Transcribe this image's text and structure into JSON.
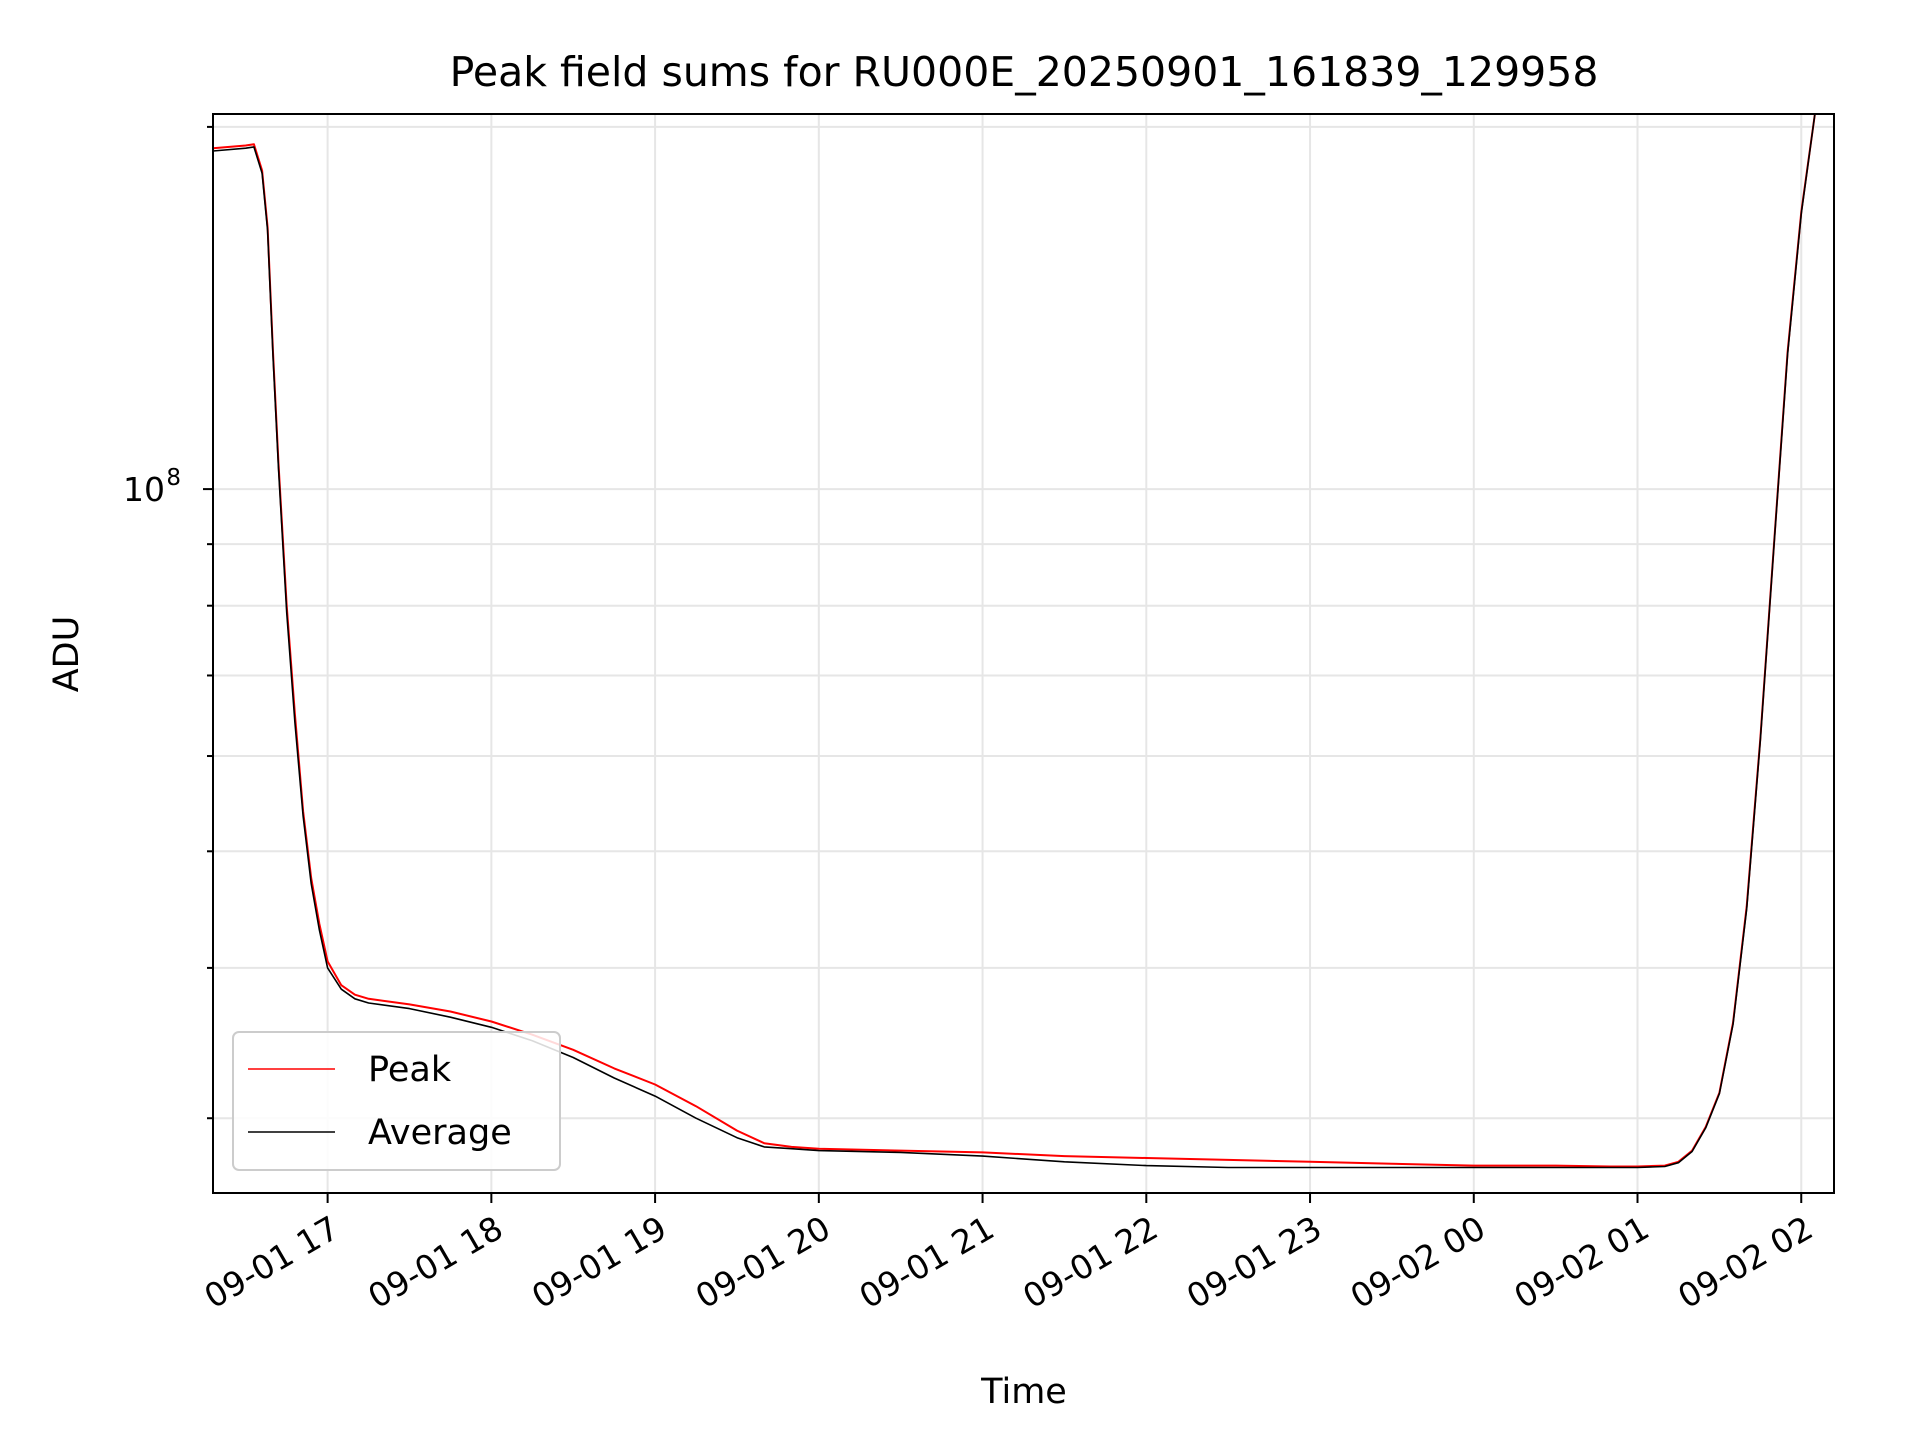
{
  "chart_data": {
    "type": "line",
    "title": "Peak field sums for RU000E_20250901_161839_129958",
    "xlabel": "Time",
    "ylabel": "ADU",
    "y_scale": "log",
    "grid": true,
    "legend_position": "lower-left",
    "x_tick_labels": [
      "09-01 17",
      "09-01 18",
      "09-01 19",
      "09-01 20",
      "09-01 21",
      "09-01 22",
      "09-01 23",
      "09-02 00",
      "09-02 01",
      "09-02 02"
    ],
    "y_tick_labels": [
      {
        "base": "10",
        "exponent": "8"
      }
    ],
    "xlim": [
      "2025-09-01 16:18",
      "2025-09-02 02:12"
    ],
    "ylim": [
      26000000,
      205000000
    ],
    "series": [
      {
        "name": "Peak",
        "color": "#ff0000",
        "x": [
          "2025-09-01 16:18",
          "2025-09-01 16:30",
          "2025-09-01 16:33",
          "2025-09-01 16:36",
          "2025-09-01 16:38",
          "2025-09-01 16:40",
          "2025-09-01 16:42",
          "2025-09-01 16:45",
          "2025-09-01 16:48",
          "2025-09-01 16:51",
          "2025-09-01 16:54",
          "2025-09-01 16:57",
          "2025-09-01 17:00",
          "2025-09-01 17:05",
          "2025-09-01 17:10",
          "2025-09-01 17:15",
          "2025-09-01 17:30",
          "2025-09-01 17:45",
          "2025-09-01 18:00",
          "2025-09-01 18:15",
          "2025-09-01 18:30",
          "2025-09-01 18:45",
          "2025-09-01 19:00",
          "2025-09-01 19:15",
          "2025-09-01 19:30",
          "2025-09-01 19:40",
          "2025-09-01 19:50",
          "2025-09-01 20:00",
          "2025-09-01 20:30",
          "2025-09-01 21:00",
          "2025-09-01 21:30",
          "2025-09-01 22:00",
          "2025-09-01 22:30",
          "2025-09-01 23:00",
          "2025-09-01 23:30",
          "2025-09-02 00:00",
          "2025-09-02 00:30",
          "2025-09-02 00:50",
          "2025-09-02 01:00",
          "2025-09-02 01:10",
          "2025-09-02 01:15",
          "2025-09-02 01:20",
          "2025-09-02 01:25",
          "2025-09-02 01:30",
          "2025-09-02 01:35",
          "2025-09-02 01:40",
          "2025-09-02 01:45",
          "2025-09-02 01:50",
          "2025-09-02 01:55",
          "2025-09-02 02:00",
          "2025-09-02 02:05"
        ],
        "y": [
          192000000,
          193000000,
          193500000,
          184000000,
          165000000,
          130000000,
          105000000,
          80000000,
          65000000,
          54000000,
          47500000,
          43500000,
          40500000,
          38700000,
          38000000,
          37700000,
          37300000,
          36800000,
          36100000,
          35200000,
          34200000,
          33000000,
          32000000,
          30700000,
          29300000,
          28600000,
          28400000,
          28300000,
          28200000,
          28100000,
          27900000,
          27800000,
          27700000,
          27600000,
          27500000,
          27400000,
          27400000,
          27350000,
          27350000,
          27400000,
          27600000,
          28200000,
          29500000,
          31500000,
          36000000,
          45000000,
          62000000,
          90000000,
          130000000,
          170000000,
          205000000
        ]
      },
      {
        "name": "Average",
        "color": "#000000",
        "x": [
          "2025-09-01 16:18",
          "2025-09-01 16:30",
          "2025-09-01 16:33",
          "2025-09-01 16:36",
          "2025-09-01 16:38",
          "2025-09-01 16:40",
          "2025-09-01 16:42",
          "2025-09-01 16:45",
          "2025-09-01 16:48",
          "2025-09-01 16:51",
          "2025-09-01 16:54",
          "2025-09-01 16:57",
          "2025-09-01 17:00",
          "2025-09-01 17:05",
          "2025-09-01 17:10",
          "2025-09-01 17:15",
          "2025-09-01 17:30",
          "2025-09-01 17:45",
          "2025-09-01 18:00",
          "2025-09-01 18:15",
          "2025-09-01 18:30",
          "2025-09-01 18:45",
          "2025-09-01 19:00",
          "2025-09-01 19:15",
          "2025-09-01 19:30",
          "2025-09-01 19:40",
          "2025-09-01 19:50",
          "2025-09-01 20:00",
          "2025-09-01 20:30",
          "2025-09-01 21:00",
          "2025-09-01 21:30",
          "2025-09-01 22:00",
          "2025-09-01 22:30",
          "2025-09-01 23:00",
          "2025-09-01 23:30",
          "2025-09-02 00:00",
          "2025-09-02 00:30",
          "2025-09-02 00:50",
          "2025-09-02 01:00",
          "2025-09-02 01:10",
          "2025-09-02 01:15",
          "2025-09-02 01:20",
          "2025-09-02 01:25",
          "2025-09-02 01:30",
          "2025-09-02 01:35",
          "2025-09-02 01:40",
          "2025-09-02 01:45",
          "2025-09-02 01:50",
          "2025-09-02 01:55",
          "2025-09-02 02:00",
          "2025-09-02 02:05"
        ],
        "y": [
          191000000,
          192000000,
          192500000,
          183000000,
          164000000,
          129000000,
          104000000,
          79000000,
          64000000,
          53500000,
          47000000,
          43000000,
          40000000,
          38400000,
          37700000,
          37400000,
          37000000,
          36400000,
          35700000,
          34800000,
          33700000,
          32400000,
          31300000,
          30000000,
          28900000,
          28400000,
          28300000,
          28200000,
          28100000,
          27900000,
          27600000,
          27400000,
          27300000,
          27300000,
          27300000,
          27300000,
          27300000,
          27300000,
          27300000,
          27350000,
          27550000,
          28150000,
          29450000,
          31450000,
          35900000,
          44800000,
          61800000,
          89800000,
          129500000,
          169500000,
          205000000
        ]
      }
    ]
  }
}
